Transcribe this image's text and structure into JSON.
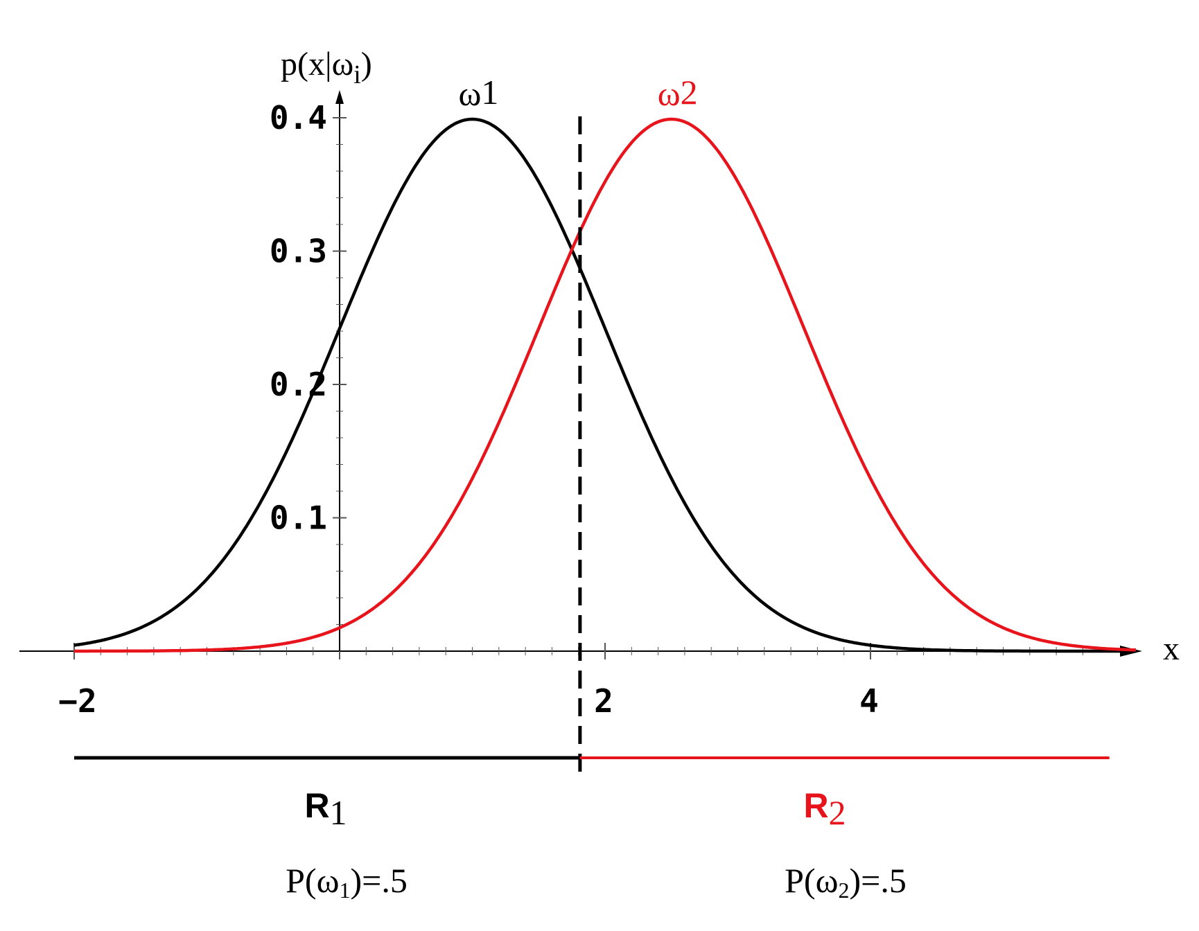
{
  "chart_data": {
    "type": "line",
    "title": "",
    "ylabel": {
      "base": "p(x|ω",
      "sub": "i",
      "close": ")"
    },
    "xlabel": "x",
    "xlim": [
      -2.2,
      5.8
    ],
    "ylim": [
      0,
      0.4
    ],
    "x_ticks": [
      {
        "value": -2,
        "label": "−2"
      },
      {
        "value": 2,
        "label": "2"
      },
      {
        "value": 4,
        "label": "4"
      }
    ],
    "y_ticks": [
      {
        "value": 0.1,
        "label": "0.1"
      },
      {
        "value": 0.2,
        "label": "0.2"
      },
      {
        "value": 0.3,
        "label": "0.3"
      },
      {
        "value": 0.4,
        "label": "0.4"
      }
    ],
    "series": [
      {
        "name": "ω1",
        "label": {
          "base": "ω",
          "sub": "1"
        },
        "distribution": "normal",
        "mean": 1.0,
        "sd": 1.0,
        "color": "#000000"
      },
      {
        "name": "ω2",
        "label": {
          "base": "ω",
          "sub": "2"
        },
        "distribution": "normal",
        "mean": 2.5,
        "sd": 1.0,
        "color": "#e8141c"
      }
    ],
    "x_range": [
      -2,
      6
    ],
    "decision_boundary": 1.78,
    "regions": [
      {
        "label": {
          "base": "R",
          "sub": "1"
        },
        "prior": {
          "prefix": "P(ω",
          "sub": "1",
          "suffix": ")=.5"
        },
        "color": "#000000"
      },
      {
        "label": {
          "base": "R",
          "sub": "2"
        },
        "prior": {
          "prefix": "P(ω",
          "sub": "2",
          "suffix": ")=.5"
        },
        "color": "#e8141c"
      }
    ]
  }
}
